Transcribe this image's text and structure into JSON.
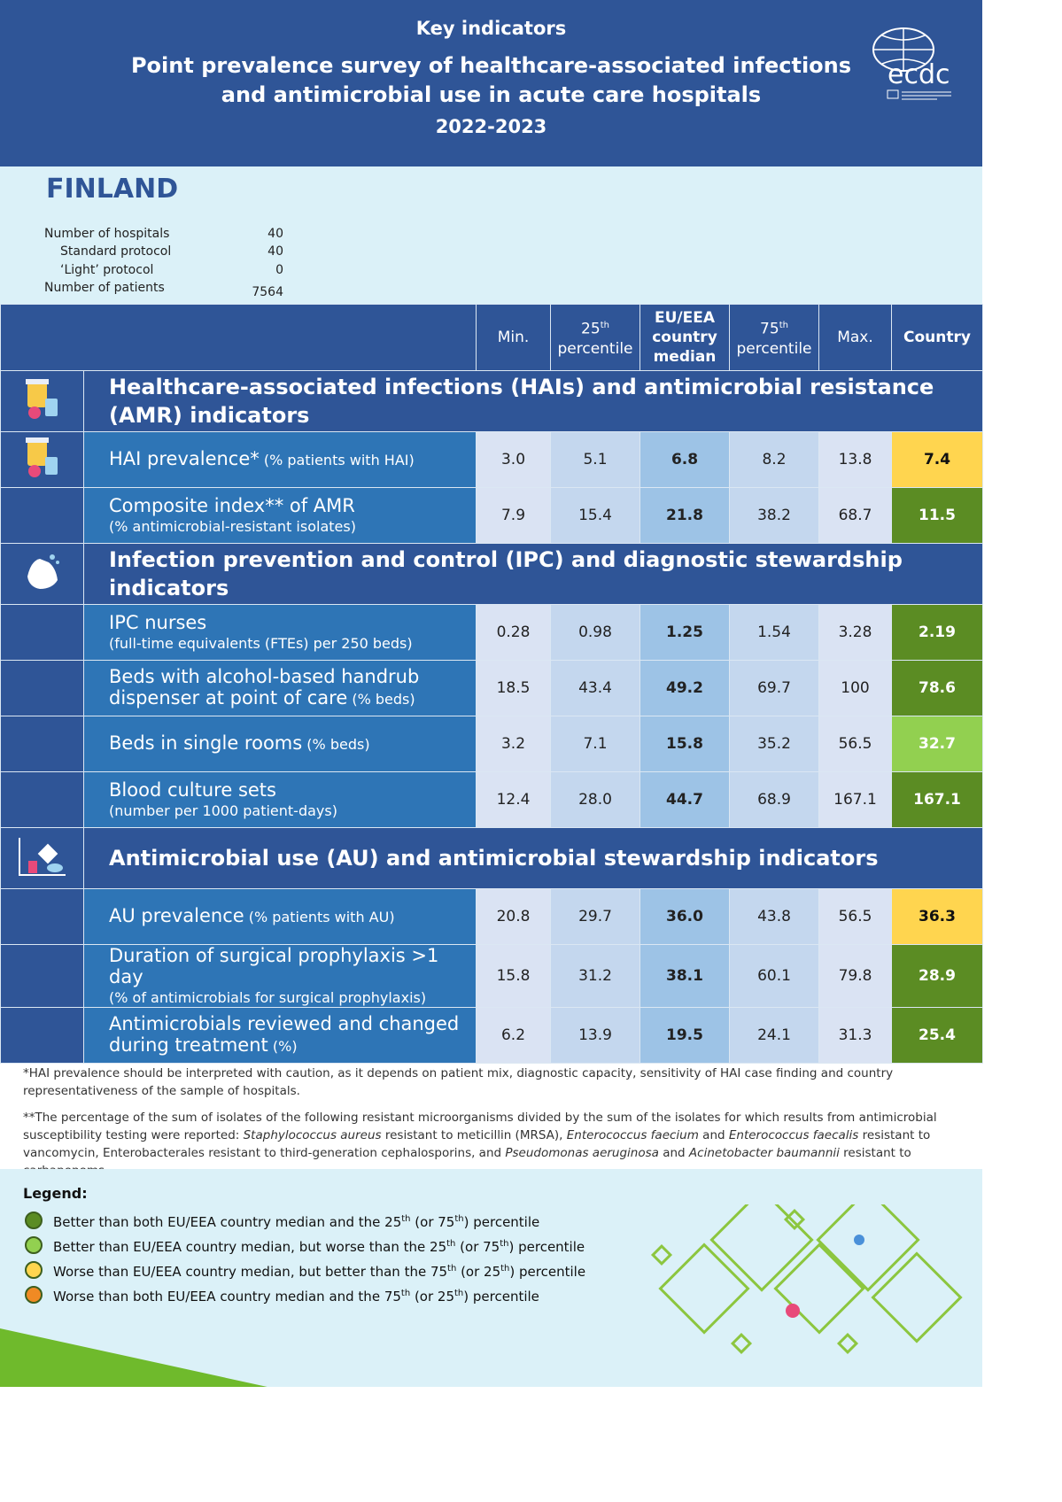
{
  "header": {
    "kicker": "Key indicators",
    "title_line1": "Point prevalence survey of healthcare-associated infections",
    "title_line2": "and antimicrobial use in acute care hospitals",
    "years": "2022-2023",
    "logo_text": "ecdc"
  },
  "country": {
    "name": "FINLAND",
    "stats": [
      {
        "label": "Number of hospitals",
        "value": "40"
      },
      {
        "label": "Standard protocol",
        "value": "40"
      },
      {
        "label": "‘Light’ protocol",
        "value": "0"
      },
      {
        "label": "Number of patients",
        "value": "7564"
      }
    ]
  },
  "table": {
    "columns": {
      "min": "Min.",
      "p25_a": "25",
      "p25_sup": "th",
      "p25_b": "percentile",
      "median_1": "EU/EEA",
      "median_2": "country",
      "median_3": "median",
      "p75_a": "75",
      "p75_sup": "th",
      "p75_b": "percentile",
      "max": "Max.",
      "country": "Country"
    },
    "sections": [
      {
        "title": "Healthcare-associated infections (HAIs) and antimicrobial resistance (AMR) indicators",
        "icon": "medicine-bottles-icon",
        "rows": [
          {
            "main": "HAI prevalence*",
            "inline": " (% patients with HAI)",
            "sub": "",
            "values": [
              "3.0",
              "5.1",
              "6.8",
              "8.2",
              "13.8",
              "7.4"
            ],
            "status": "yellow"
          },
          {
            "main": "Composite index** of AMR",
            "inline": "",
            "sub": "(% antimicrobial-resistant isolates)",
            "values": [
              "7.9",
              "15.4",
              "21.8",
              "38.2",
              "68.7",
              "11.5"
            ],
            "status": "dark-green"
          }
        ]
      },
      {
        "title": "Infection prevention and control (IPC) and diagnostic stewardship indicators",
        "icon": "hand-washing-icon",
        "rows": [
          {
            "main": "IPC nurses",
            "inline": "",
            "sub": "(full-time equivalents (FTEs) per 250 beds)",
            "values": [
              "0.28",
              "0.98",
              "1.25",
              "1.54",
              "3.28",
              "2.19"
            ],
            "status": "dark-green"
          },
          {
            "main": "Beds with alcohol-based handrub dispenser at point of care",
            "inline": " (% beds)",
            "sub": "",
            "values": [
              "18.5",
              "43.4",
              "49.2",
              "69.7",
              "100",
              "78.6"
            ],
            "status": "dark-green"
          },
          {
            "main": "Beds in single rooms",
            "inline": " (% beds)",
            "sub": "",
            "values": [
              "3.2",
              "7.1",
              "15.8",
              "35.2",
              "56.5",
              "32.7"
            ],
            "status": "light-green"
          },
          {
            "main": "Blood culture sets",
            "inline": "",
            "sub": "(number per 1000 patient-days)",
            "values": [
              "12.4",
              "28.0",
              "44.7",
              "68.9",
              "167.1",
              "167.1"
            ],
            "status": "dark-green"
          }
        ]
      },
      {
        "title": "Antimicrobial use (AU) and antimicrobial stewardship indicators",
        "icon": "pills-chart-icon",
        "rows": [
          {
            "main": "AU prevalence",
            "inline": " (% patients with AU)",
            "sub": "",
            "values": [
              "20.8",
              "29.7",
              "36.0",
              "43.8",
              "56.5",
              "36.3"
            ],
            "status": "yellow"
          },
          {
            "main": "Duration of surgical prophylaxis >1 day",
            "inline": "",
            "sub": "(% of antimicrobials for surgical prophylaxis)",
            "values": [
              "15.8",
              "31.2",
              "38.1",
              "60.1",
              "79.8",
              "28.9"
            ],
            "status": "dark-green"
          },
          {
            "main": "Antimicrobials reviewed and changed during treatment",
            "inline": " (%)",
            "sub": "",
            "values": [
              "6.2",
              "13.9",
              "19.5",
              "24.1",
              "31.3",
              "25.4"
            ],
            "status": "dark-green"
          }
        ]
      }
    ]
  },
  "status_colors": {
    "dark-green": "#5b8c23",
    "light-green": "#92d050",
    "yellow": "#ffd54f",
    "orange": "#f08a24"
  },
  "footnotes": {
    "note1": "*HAI prevalence should be interpreted with caution, as it depends on patient mix, diagnostic capacity, sensitivity of HAI case finding and country representativeness of the sample of hospitals.",
    "note2": [
      {
        "t": "**The percentage of the sum of isolates of the following resistant microorganisms divided by the sum of the isolates for which results from antimicrobial susceptibility testing were reported: "
      },
      {
        "t": "Staphylococcus aureus",
        "i": true
      },
      {
        "t": " resistant to meticillin (MRSA), "
      },
      {
        "t": "Enterococcus faecium",
        "i": true
      },
      {
        "t": " and "
      },
      {
        "t": "Enterococcus faecalis",
        "i": true
      },
      {
        "t": " resistant to vancomycin, Enterobacterales resistant to third-generation cephalosporins, and "
      },
      {
        "t": "Pseudomonas aeruginosa",
        "i": true
      },
      {
        "t": " and "
      },
      {
        "t": "Acinetobacter baumannii",
        "i": true
      },
      {
        "t": " resistant to carbapenems."
      }
    ]
  },
  "legend": {
    "title": "Legend:",
    "items": [
      {
        "status": "dark-green",
        "parts": [
          "Better than both EU/EEA country median and the 25",
          "th",
          " (or 75",
          "th",
          ") percentile"
        ]
      },
      {
        "status": "light-green",
        "parts": [
          "Better than EU/EEA country median, but worse than the 25",
          "th",
          " (or 75",
          "th",
          ") percentile"
        ]
      },
      {
        "status": "yellow",
        "parts": [
          "Worse than EU/EEA country median, but better than the 75",
          "th",
          " (or 25",
          "th",
          ") percentile"
        ]
      },
      {
        "status": "orange",
        "parts": [
          "Worse than both EU/EEA country median and the 75",
          "th",
          " (or 25",
          "th",
          ") percentile"
        ]
      }
    ]
  }
}
